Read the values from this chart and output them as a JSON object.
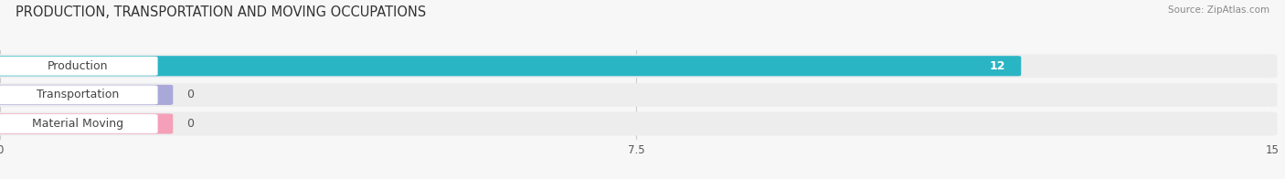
{
  "title": "PRODUCTION, TRANSPORTATION AND MOVING OCCUPATIONS",
  "source": "Source: ZipAtlas.com",
  "categories": [
    "Production",
    "Transportation",
    "Material Moving"
  ],
  "values": [
    12,
    0,
    0
  ],
  "bar_colors": [
    "#2ab5c5",
    "#a9a8d8",
    "#f4a0b8"
  ],
  "xlim": [
    0,
    15
  ],
  "xticks": [
    0,
    7.5,
    15
  ],
  "title_fontsize": 10.5,
  "label_fontsize": 9,
  "value_fontsize": 9,
  "bar_height": 0.62,
  "row_bg_color": "#ededee",
  "label_bg_color": "#ffffff",
  "value_label_color": "#ffffff",
  "zero_value_color": "#555555",
  "fig_bg": "#f7f7f8"
}
